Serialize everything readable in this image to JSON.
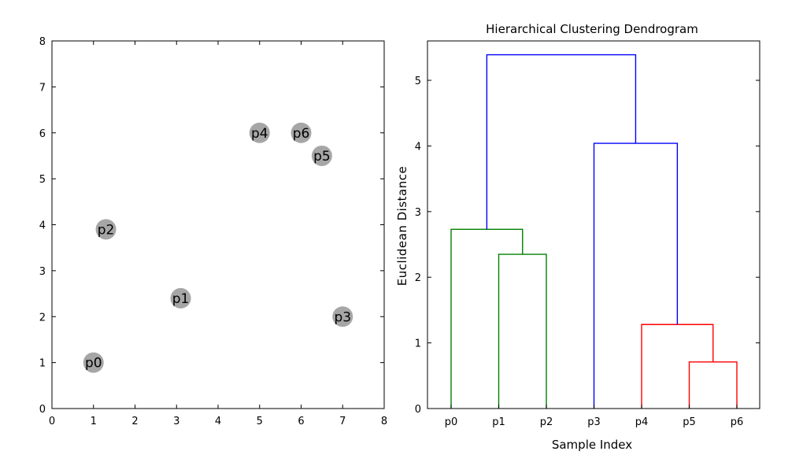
{
  "chart_data": [
    {
      "type": "scatter",
      "title": "",
      "xlabel": "",
      "ylabel": "",
      "xlim": [
        0,
        8
      ],
      "ylim": [
        0,
        8
      ],
      "xticks": [
        0,
        1,
        2,
        3,
        4,
        5,
        6,
        7,
        8
      ],
      "yticks": [
        0,
        1,
        2,
        3,
        4,
        5,
        6,
        7,
        8
      ],
      "marker_color": "#a6a6a6",
      "points": [
        {
          "label": "p0",
          "x": 1.0,
          "y": 1.0
        },
        {
          "label": "p1",
          "x": 3.1,
          "y": 2.4
        },
        {
          "label": "p2",
          "x": 1.3,
          "y": 3.9
        },
        {
          "label": "p3",
          "x": 7.0,
          "y": 2.0
        },
        {
          "label": "p4",
          "x": 5.0,
          "y": 6.0
        },
        {
          "label": "p5",
          "x": 6.5,
          "y": 5.5
        },
        {
          "label": "p6",
          "x": 6.0,
          "y": 6.0
        }
      ]
    },
    {
      "type": "dendrogram",
      "title": "Hierarchical Clustering Dendrogram",
      "xlabel": "Sample Index",
      "ylabel": "Euclidean Distance",
      "ylim": [
        0,
        5.6
      ],
      "yticks": [
        0,
        1,
        2,
        3,
        4,
        5
      ],
      "leaves": [
        "p0",
        "p1",
        "p2",
        "p3",
        "p4",
        "p5",
        "p6"
      ],
      "links": [
        {
          "left_x": 0.0,
          "right_x": 1.5,
          "left_h": 0,
          "right_h": 2.35,
          "height": 2.73,
          "color": "#008000"
        },
        {
          "left_x": 1.0,
          "right_x": 2.0,
          "left_h": 0,
          "right_h": 0,
          "height": 2.35,
          "color": "#008000"
        },
        {
          "left_x": 5.0,
          "right_x": 6.0,
          "left_h": 0,
          "right_h": 0,
          "height": 0.71,
          "color": "#ff0000"
        },
        {
          "left_x": 4.0,
          "right_x": 5.5,
          "left_h": 0,
          "right_h": 0.71,
          "height": 1.28,
          "color": "#ff0000"
        },
        {
          "left_x": 3.0,
          "right_x": 4.75,
          "left_h": 0,
          "right_h": 1.28,
          "height": 4.04,
          "color": "#0000ff"
        },
        {
          "left_x": 0.75,
          "right_x": 3.875,
          "left_h": 2.73,
          "right_h": 4.04,
          "height": 5.39,
          "color": "#0000ff"
        }
      ]
    }
  ]
}
